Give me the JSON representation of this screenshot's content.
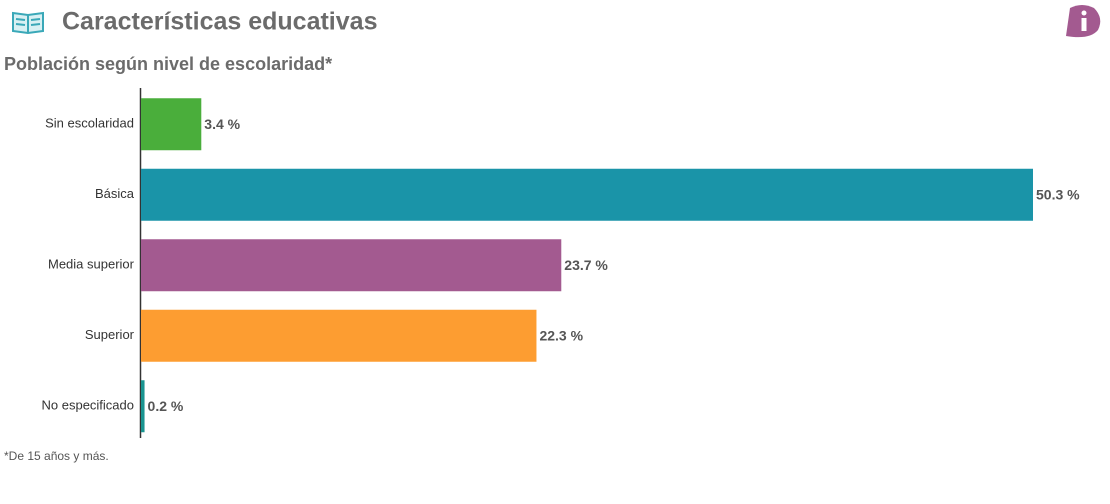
{
  "chart_data": {
    "type": "bar",
    "orientation": "horizontal",
    "title": "Características educativas",
    "subtitle": "Población según nivel de escolaridad*",
    "note": "*De 15 años y más.",
    "categories": [
      "Sin escolaridad",
      "Básica",
      "Media superior",
      "Superior",
      "No especificado"
    ],
    "values": [
      3.4,
      50.3,
      23.7,
      22.3,
      0.2
    ],
    "value_labels": [
      "3.4 %",
      "50.3 %",
      "23.7 %",
      "22.3 %",
      "0.2 %"
    ],
    "colors": [
      "#4aae3b",
      "#1a94a8",
      "#a35a90",
      "#fd9d31",
      "#1a9490"
    ],
    "xlim": [
      0,
      50.3
    ]
  }
}
